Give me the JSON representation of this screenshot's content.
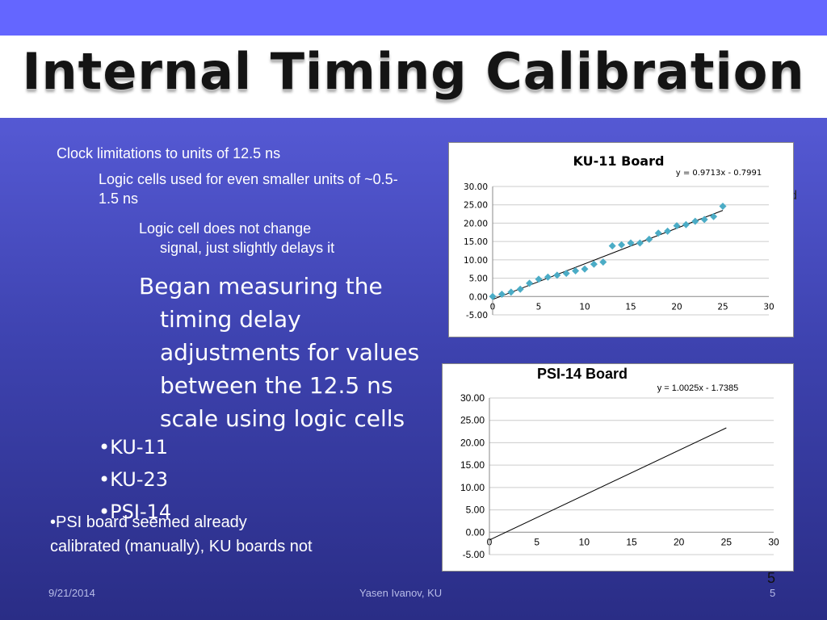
{
  "slide": {
    "title": "Internal Timing Calibration",
    "bullets": {
      "l1": "Clock limitations to units of 12.5 ns",
      "l2": "Logic cells used for even smaller units of ~0.5-1.5 ns",
      "l3a": "Logic cell does not change",
      "l3b": "signal, just slightly delays it",
      "l4a": "Began measuring the",
      "l4b": "timing delay",
      "l4c": "adjustments for values",
      "l4d": "between the 12.5 ns",
      "l4e": "scale using logic cells",
      "b1": "•KU-11",
      "b2": "•KU-23",
      "b3": "•PSI-14"
    },
    "note_line1": "•PSI board seemed already",
    "note_line2": "calibrated (manually), KU boards not",
    "stray_char": "d",
    "slide_number_overlay": "5"
  },
  "footer": {
    "date": "9/21/2014",
    "author": "Yasen Ivanov, KU",
    "page": "5"
  },
  "chart_data": [
    {
      "type": "scatter",
      "title": "KU-11 Board",
      "equation": "y = 0.9713x - 0.7991",
      "trendline": {
        "slope": 0.9713,
        "intercept": -0.7991,
        "x_range": [
          0,
          25
        ]
      },
      "xlim": [
        0,
        30
      ],
      "ylim": [
        -5,
        30
      ],
      "x_ticks": [
        "0",
        "5",
        "10",
        "15",
        "20",
        "25",
        "30"
      ],
      "y_ticks": [
        "30.00",
        "25.00",
        "20.00",
        "15.00",
        "10.00",
        "5.00",
        "0.00",
        "-5.00"
      ],
      "marker_color": "#4bacc6",
      "series": [
        {
          "x": [
            0,
            1,
            2,
            3,
            4,
            5,
            6,
            7,
            8,
            9,
            10,
            11,
            12,
            13,
            14,
            15,
            16,
            17,
            18,
            19,
            20,
            21,
            22,
            23,
            24,
            25
          ],
          "y": [
            0,
            0.6,
            1.2,
            2.0,
            3.6,
            4.7,
            5.3,
            5.8,
            6.3,
            7.0,
            7.5,
            8.8,
            9.4,
            13.8,
            14.1,
            14.6,
            14.6,
            15.6,
            17.3,
            17.8,
            19.3,
            19.6,
            20.5,
            21.0,
            21.8,
            24.6
          ]
        }
      ]
    },
    {
      "type": "line",
      "title": "PSI-14 Board",
      "equation": "y = 1.0025x - 1.7385",
      "trendline": {
        "slope": 1.0025,
        "intercept": -1.7385,
        "x_range": [
          0,
          25
        ]
      },
      "xlim": [
        0,
        30
      ],
      "ylim": [
        -5,
        30
      ],
      "x_ticks": [
        "0",
        "5",
        "10",
        "15",
        "20",
        "25",
        "30"
      ],
      "y_ticks": [
        "30.00",
        "25.00",
        "20.00",
        "15.00",
        "10.00",
        "5.00",
        "0.00",
        "-5.00"
      ],
      "series": []
    }
  ]
}
